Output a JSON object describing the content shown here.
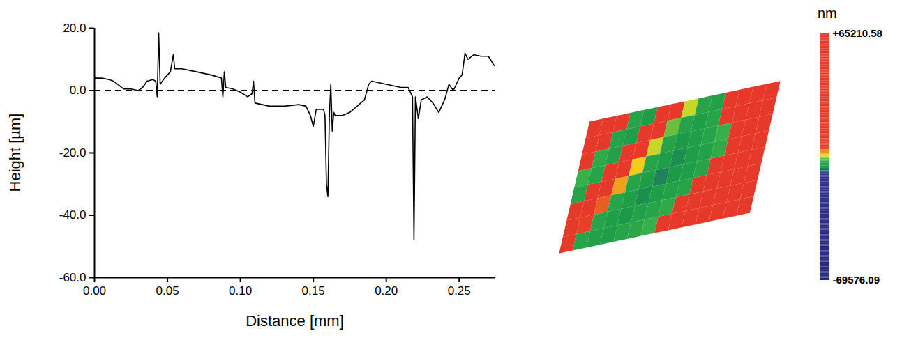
{
  "chart_data": [
    {
      "type": "line",
      "xlabel": "Distance [mm]",
      "ylabel": "Height [µm]",
      "color": "#000000",
      "x": [
        0,
        0.005,
        0.01,
        0.013,
        0.016,
        0.02,
        0.025,
        0.03,
        0.033,
        0.036,
        0.04,
        0.042,
        0.043,
        0.044,
        0.045,
        0.048,
        0.05,
        0.052,
        0.054,
        0.055,
        0.06,
        0.07,
        0.08,
        0.087,
        0.088,
        0.089,
        0.09,
        0.095,
        0.1,
        0.105,
        0.108,
        0.109,
        0.11,
        0.12,
        0.13,
        0.14,
        0.145,
        0.148,
        0.15,
        0.152,
        0.155,
        0.157,
        0.158,
        0.159,
        0.16,
        0.161,
        0.162,
        0.163,
        0.164,
        0.165,
        0.17,
        0.175,
        0.18,
        0.185,
        0.188,
        0.19,
        0.2,
        0.21,
        0.215,
        0.218,
        0.219,
        0.2195,
        0.22,
        0.222,
        0.224,
        0.228,
        0.232,
        0.236,
        0.24,
        0.243,
        0.246,
        0.25,
        0.252,
        0.254,
        0.256,
        0.26,
        0.265,
        0.27,
        0.274
      ],
      "values": [
        4,
        4,
        3.5,
        3,
        2,
        0.5,
        0.5,
        0,
        1,
        3,
        3.5,
        3,
        -2,
        18.5,
        2,
        4,
        5,
        6,
        11.5,
        7,
        7,
        6,
        5,
        4,
        -2,
        6,
        1,
        0.5,
        -0.5,
        -2,
        -1,
        3,
        -4,
        -5,
        -5,
        -4.5,
        -5,
        -8,
        -11.5,
        -6,
        -6,
        -6,
        -8,
        -30,
        -34,
        -8,
        2,
        -13,
        -7,
        -8,
        -8,
        -7,
        -5,
        -3,
        2,
        3,
        2,
        1,
        1,
        -2,
        -48,
        -26,
        -2,
        -9,
        -3,
        -2,
        -4,
        -7,
        -3,
        2,
        0,
        4,
        5,
        12,
        10,
        11.5,
        11,
        11,
        8
      ],
      "xlim": [
        0,
        0.275
      ],
      "ylim": [
        -60,
        20
      ],
      "xticks": [
        {
          "value": 0,
          "label": "0.00"
        },
        {
          "value": 0.05,
          "label": "0.05"
        },
        {
          "value": 0.1,
          "label": "0.10"
        },
        {
          "value": 0.15,
          "label": "0.15"
        },
        {
          "value": 0.2,
          "label": "0.20"
        },
        {
          "value": 0.25,
          "label": "0.25"
        }
      ],
      "yticks": [
        {
          "value": -60,
          "label": "-60.0"
        },
        {
          "value": -40,
          "label": "-40.0"
        },
        {
          "value": -20,
          "label": "-20.0"
        },
        {
          "value": 0,
          "label": "0.0"
        },
        {
          "value": 20,
          "label": "20.0"
        }
      ],
      "reference_lines": [
        {
          "y": 0,
          "line_style": "dashed"
        }
      ]
    },
    {
      "type": "surface",
      "tick_labels": false,
      "cells": [
        [
          30000,
          25000,
          8000,
          -6000,
          -7000,
          20000,
          28000,
          -2000,
          -6000,
          -6500,
          15000,
          30000,
          35000,
          32000
        ],
        [
          28000,
          6000,
          -6000,
          -7000,
          18000,
          26000,
          -3000,
          -6000,
          -7000,
          -6000,
          12000,
          28000,
          33000,
          30000
        ],
        [
          9000,
          -5000,
          -6500,
          16000,
          24000,
          -2000,
          -6000,
          -7500,
          -7000,
          -6000,
          -4000,
          20000,
          30000,
          28000
        ],
        [
          -4000,
          -6000,
          14000,
          22000,
          -1000,
          -6000,
          -7000,
          -8000,
          -7000,
          -6500,
          -5000,
          15000,
          26000,
          25000
        ],
        [
          -6000,
          12000,
          20000,
          0,
          -6000,
          -7000,
          -8500,
          -7500,
          -7000,
          -6000,
          10000,
          22000,
          24000,
          20000
        ],
        [
          10000,
          18000,
          2000,
          -6000,
          -7000,
          -8000,
          -7000,
          -6500,
          -6000,
          8000,
          20000,
          25000,
          22000,
          18000
        ],
        [
          16000,
          3000,
          -6000,
          -7000,
          -7500,
          -6500,
          -6000,
          -5000,
          6000,
          18000,
          26000,
          24000,
          20000,
          15000
        ],
        [
          4000,
          -6000,
          -6500,
          -7000,
          -6000,
          -5500,
          -4000,
          5000,
          16000,
          24000,
          28000,
          25000,
          18000,
          12000
        ]
      ],
      "colorbar": {
        "label": "nm",
        "range": [
          -69576.09,
          65210.58
        ],
        "ticks": [
          {
            "value": 65210.58,
            "label": "+65210.58"
          },
          {
            "value": -69576.09,
            "label": "-69576.09"
          }
        ]
      }
    }
  ]
}
